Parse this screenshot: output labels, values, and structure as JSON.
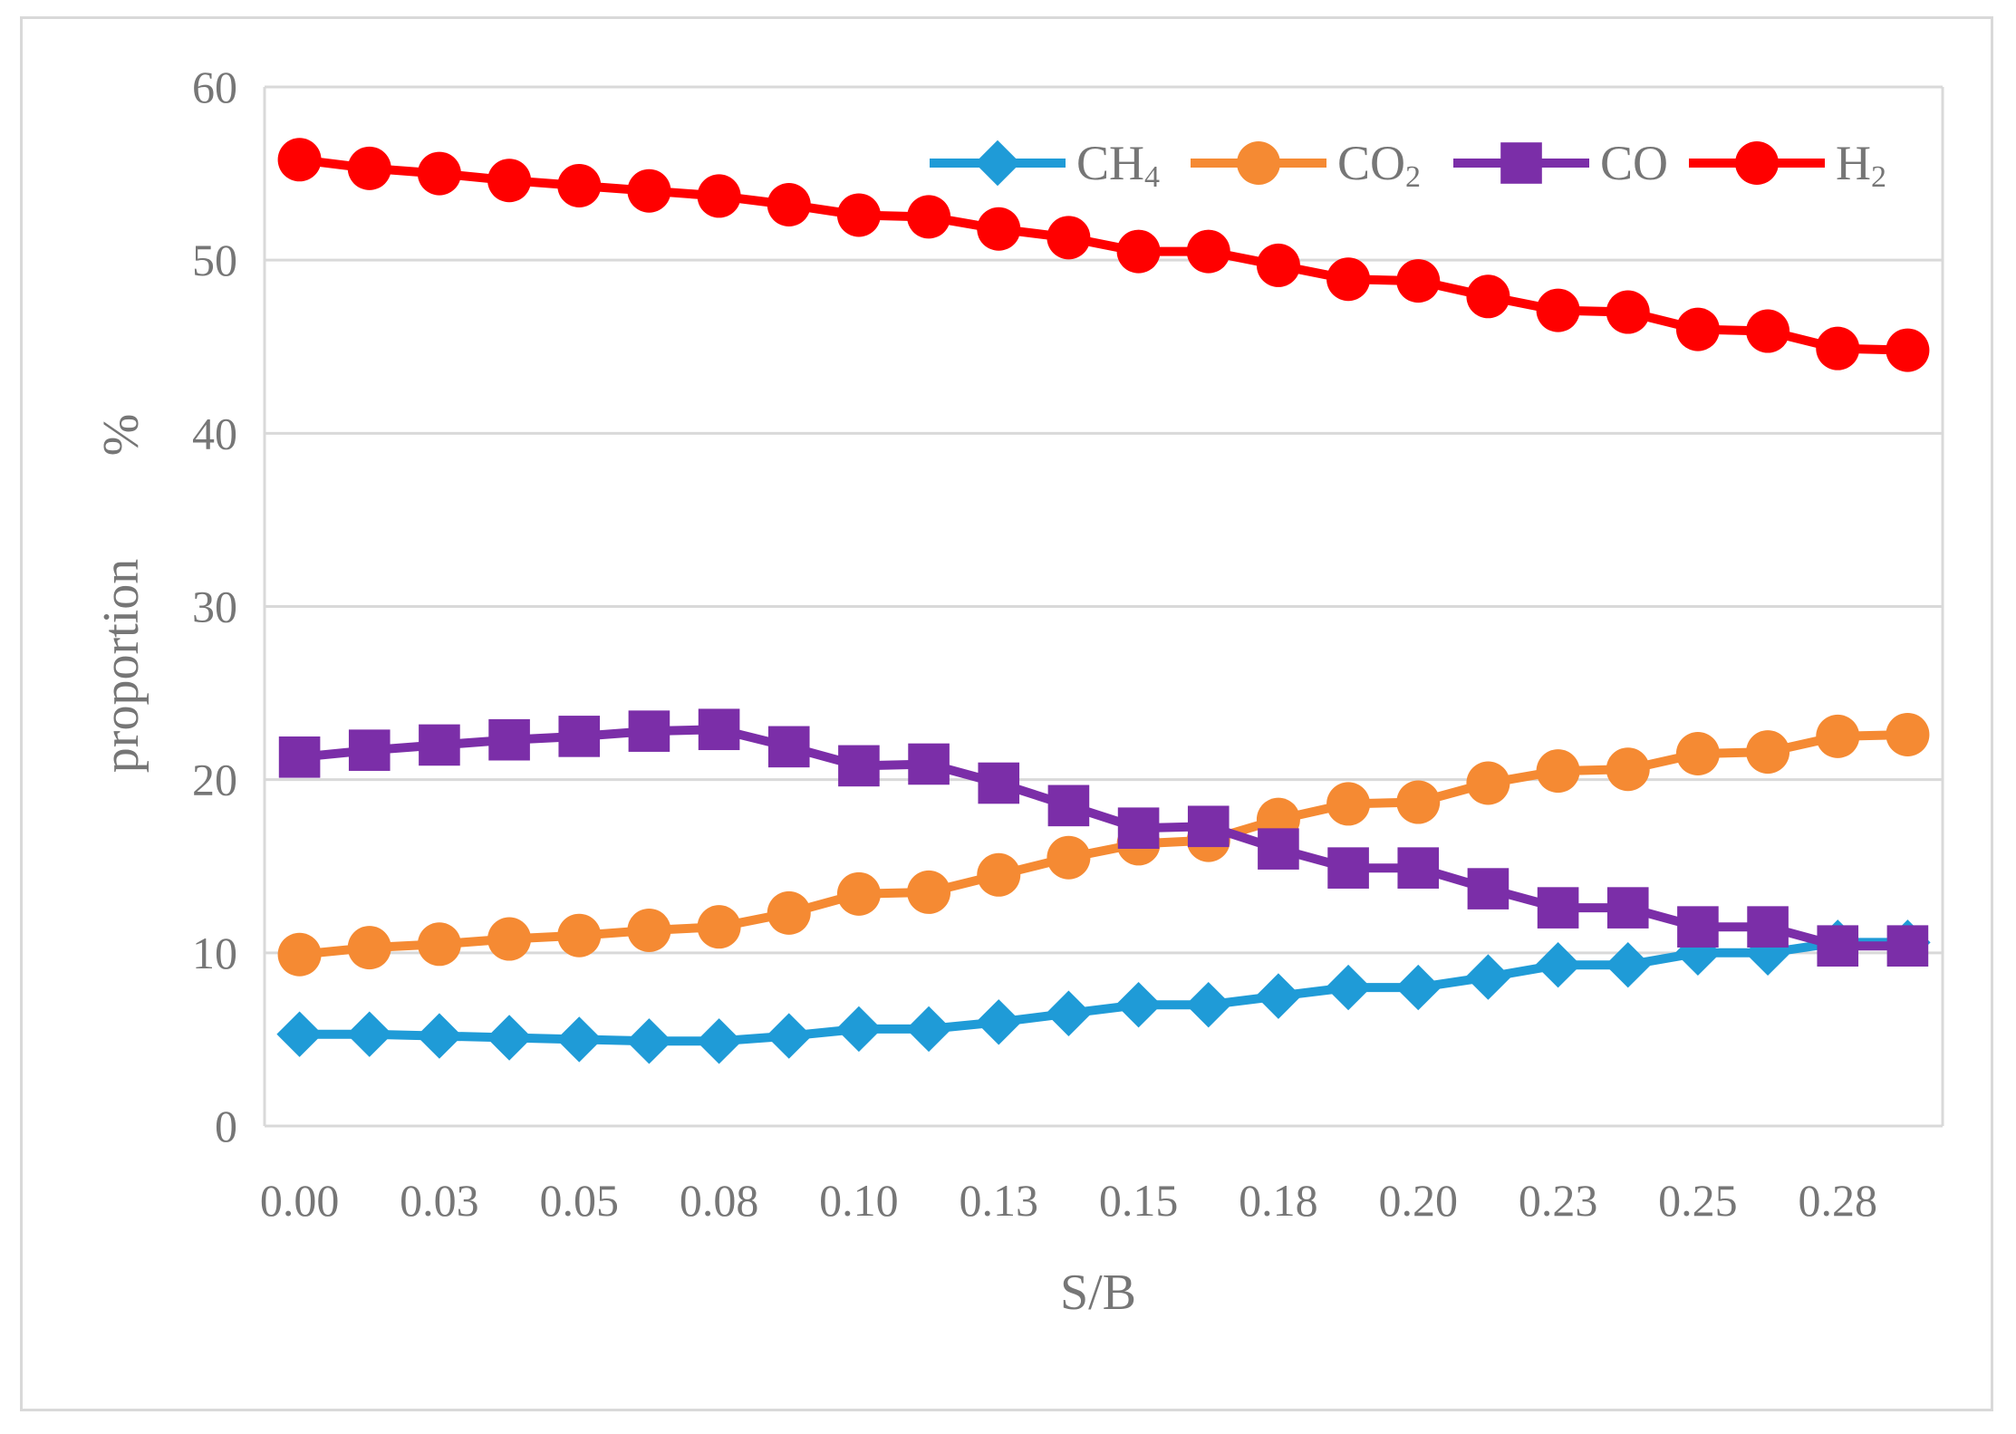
{
  "chart_data": {
    "type": "line",
    "title": "",
    "xlabel": "S/B",
    "ylabel": "proportion %",
    "ylabel_parts": [
      "proportion",
      "%"
    ],
    "ylim": [
      0,
      60
    ],
    "yticks": [
      "0",
      "10",
      "20",
      "30",
      "40",
      "50",
      "60"
    ],
    "xticks": [
      "0.00",
      "0.03",
      "0.05",
      "0.08",
      "0.10",
      "0.13",
      "0.15",
      "0.18",
      "0.20",
      "0.23",
      "0.25",
      "0.28"
    ],
    "x": [
      0.0,
      0.0125,
      0.025,
      0.0375,
      0.05,
      0.0625,
      0.075,
      0.0875,
      0.1,
      0.1125,
      0.125,
      0.1375,
      0.15,
      0.1625,
      0.175,
      0.1875,
      0.2,
      0.2125,
      0.225,
      0.2375,
      0.25,
      0.2625,
      0.275,
      0.2875
    ],
    "grid": true,
    "legend_position": "top-right",
    "series": [
      {
        "name": "CH4",
        "label_main": "CH",
        "label_sub": "4",
        "color": "#1f9bd7",
        "marker": "diamond",
        "values": [
          5.3,
          5.3,
          5.2,
          5.1,
          5.0,
          4.9,
          4.9,
          5.2,
          5.6,
          5.6,
          6.0,
          6.5,
          7.0,
          7.0,
          7.5,
          8.0,
          8.0,
          8.6,
          9.3,
          9.3,
          10.0,
          10.0,
          10.6,
          10.6
        ]
      },
      {
        "name": "CO2",
        "label_main": "CO",
        "label_sub": "2",
        "color": "#f58a33",
        "marker": "circle",
        "values": [
          9.9,
          10.3,
          10.5,
          10.8,
          11.0,
          11.3,
          11.5,
          12.3,
          13.4,
          13.5,
          14.5,
          15.5,
          16.3,
          16.5,
          17.7,
          18.6,
          18.7,
          19.8,
          20.5,
          20.6,
          21.5,
          21.6,
          22.5,
          22.6
        ]
      },
      {
        "name": "CO",
        "label_main": "CO",
        "label_sub": "",
        "color": "#7b2ea8",
        "marker": "square",
        "values": [
          21.3,
          21.7,
          22.0,
          22.3,
          22.5,
          22.8,
          22.9,
          21.9,
          20.8,
          20.9,
          19.8,
          18.5,
          17.2,
          17.3,
          16.0,
          14.9,
          14.9,
          13.7,
          12.6,
          12.6,
          11.5,
          11.5,
          10.4,
          10.4
        ]
      },
      {
        "name": "H2",
        "label_main": "H",
        "label_sub": "2",
        "color": "#ff0000",
        "marker": "circle",
        "values": [
          55.8,
          55.3,
          55.0,
          54.6,
          54.3,
          54.0,
          53.7,
          53.2,
          52.6,
          52.5,
          51.8,
          51.3,
          50.5,
          50.5,
          49.7,
          48.9,
          48.8,
          47.9,
          47.1,
          47.0,
          46.0,
          45.9,
          44.9,
          44.8
        ]
      }
    ]
  }
}
